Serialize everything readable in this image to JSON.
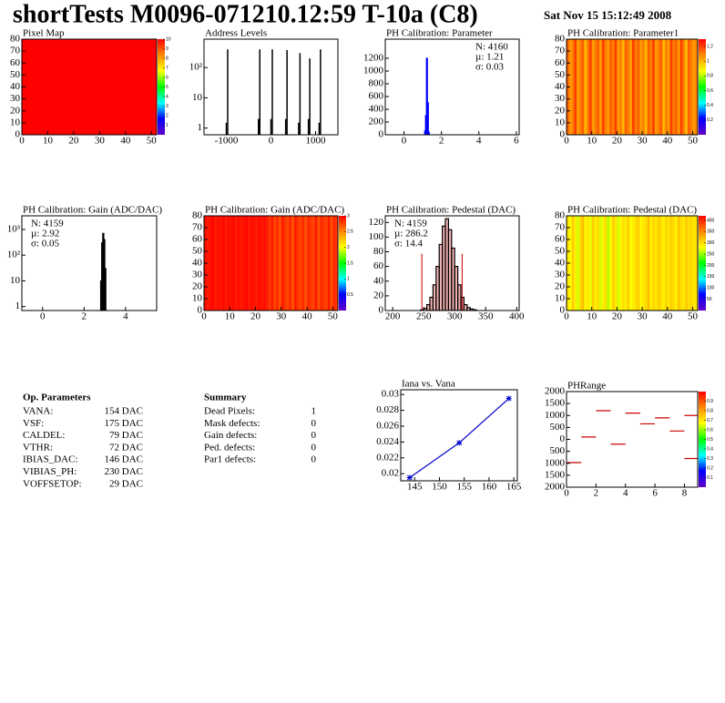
{
  "title": "shortTests M0096-071210.12:59 T-10a (C8)",
  "date": "Sat Nov 15 15:12:49 2008",
  "chart_data": [
    {
      "type": "heatmap",
      "title": "Pixel Map",
      "xlim": [
        0,
        52
      ],
      "ylim": [
        0,
        80
      ],
      "xticks": [
        0,
        10,
        20,
        30,
        40,
        50
      ],
      "yticks": [
        0,
        10,
        20,
        30,
        40,
        50,
        60,
        70,
        80
      ],
      "zlim": [
        0,
        10
      ],
      "zticks": [
        1,
        2,
        3,
        4,
        5,
        6,
        7,
        8,
        9,
        10
      ],
      "columns": [
        10,
        10,
        10,
        10,
        10,
        10,
        10,
        10,
        10,
        10,
        10,
        10,
        10,
        10,
        10,
        10,
        10,
        10,
        10,
        10,
        10,
        10,
        10,
        10,
        10,
        10,
        10,
        10,
        10,
        10,
        10,
        10,
        10,
        10,
        10,
        10,
        10,
        10,
        10,
        10,
        10,
        10,
        10,
        10,
        10,
        10,
        10,
        10,
        10,
        10,
        10,
        10
      ]
    },
    {
      "type": "spikes",
      "title": "Address Levels",
      "xlim": [
        -1500,
        1500
      ],
      "ylim": [
        0.6,
        870
      ],
      "log_y": true,
      "color": "#000000",
      "xticks": [
        -1000,
        0,
        1000
      ],
      "yticks": [
        1,
        10,
        {
          "value": 100,
          "label": "10²"
        }
      ],
      "x": [
        -1000,
        -970,
        -280,
        -250,
        0,
        30,
        330,
        360,
        620,
        650,
        840,
        870,
        1080,
        1110
      ],
      "values": [
        1.5,
        400,
        2,
        400,
        2,
        400,
        2,
        380,
        1.5,
        300,
        2,
        200,
        1.5,
        400
      ]
    },
    {
      "type": "histogram",
      "title": "PH Calibration: Parameter",
      "xlim": [
        -1,
        6.15
      ],
      "ylim": [
        0,
        1500
      ],
      "color": "#0000ff",
      "xticks": [
        0,
        2,
        4,
        6
      ],
      "yticks": [
        0,
        200,
        400,
        600,
        800,
        1000,
        1200
      ],
      "bins": [
        1.1,
        1.15,
        1.2,
        1.25,
        1.3,
        1.35
      ],
      "values": [
        60,
        300,
        1200,
        500,
        40
      ],
      "stats": [
        {
          "text": "N: 4160",
          "color": "#0000ff"
        },
        {
          "text": "µ: 1.21",
          "color": "#0000ff"
        },
        {
          "text": "σ: 0.03",
          "color": "#0000ff"
        }
      ]
    },
    {
      "type": "heatmap",
      "title": "PH Calibration: Parameter1",
      "xlim": [
        0,
        52
      ],
      "ylim": [
        0,
        80
      ],
      "xticks": [
        0,
        10,
        20,
        30,
        40,
        50
      ],
      "yticks": [
        0,
        10,
        20,
        30,
        40,
        50,
        60,
        70,
        80
      ],
      "zlim": [
        0,
        1.3
      ],
      "zticks": [
        0.2,
        0.4,
        0.6,
        0.8,
        1,
        1.2
      ],
      "columns": [
        1.15,
        1.05,
        1.1,
        1.2,
        1.05,
        1.1,
        1.15,
        1.0,
        1.1,
        1.2,
        1.05,
        1.1,
        1.15,
        1.05,
        1.2,
        1.1,
        1.05,
        1.15,
        1.1,
        1.2,
        1.05,
        1.1,
        1.0,
        1.15,
        1.1,
        1.05,
        1.2,
        1.1,
        1.15,
        1.05,
        1.1,
        1.0,
        1.15,
        1.1,
        1.2,
        1.05,
        1.1,
        1.15,
        1.0,
        1.1,
        1.05,
        1.2,
        1.1,
        1.15,
        1.05,
        1.2,
        1.1,
        1.0,
        1.15,
        1.1,
        1.05,
        1.1
      ]
    },
    {
      "type": "histogram",
      "title": "PH Calibration: Gain (ADC/DAC)",
      "xlim": [
        -1,
        5.5
      ],
      "ylim": [
        0.7,
        3400
      ],
      "log_y": true,
      "color": "#000000",
      "xticks": [
        0,
        2,
        4
      ],
      "yticks": [
        1,
        10,
        {
          "value": 100,
          "label": "10²"
        },
        {
          "value": 1000,
          "label": "10³"
        }
      ],
      "bins": [
        2.8,
        2.85,
        2.9,
        2.95,
        3.0,
        3.05
      ],
      "values": [
        10,
        300,
        700,
        400,
        30
      ],
      "stats": [
        {
          "text": "N: 4159",
          "color": "#000000"
        },
        {
          "text": "µ: 2.92",
          "color": "#000000"
        },
        {
          "text": "σ: 0.05",
          "color": "#000000"
        }
      ]
    },
    {
      "type": "heatmap",
      "title": "PH Calibration: Gain (ADC/DAC)",
      "xlim": [
        0,
        52
      ],
      "ylim": [
        0,
        80
      ],
      "xticks": [
        0,
        10,
        20,
        30,
        40,
        50
      ],
      "yticks": [
        0,
        10,
        20,
        30,
        40,
        50,
        60,
        70,
        80
      ],
      "zlim": [
        0,
        3
      ],
      "zticks": [
        0.5,
        1,
        1.5,
        2,
        2.5,
        3
      ],
      "columns": [
        2.95,
        2.9,
        2.95,
        2.98,
        2.9,
        2.95,
        2.92,
        2.97,
        2.9,
        2.95,
        2.93,
        2.96,
        2.9,
        2.95,
        2.9,
        2.94,
        2.97,
        2.9,
        2.95,
        2.93,
        2.9,
        2.96,
        2.92,
        2.95,
        2.9,
        2.8,
        2.9,
        2.75,
        2.85,
        2.7,
        2.9,
        2.8,
        2.75,
        2.85,
        2.7,
        2.9,
        2.8,
        2.75,
        2.85,
        2.7,
        2.85,
        2.8,
        2.75,
        2.9,
        2.7,
        2.85,
        2.8,
        2.75,
        2.9,
        2.7,
        2.85,
        2.8
      ]
    },
    {
      "type": "histogram",
      "title": "PH Calibration: Pedestal (DAC)",
      "xlim": [
        188,
        404
      ],
      "ylim": [
        0,
        129
      ],
      "color": "#000000",
      "fill": "#cc0000",
      "xticks": [
        200,
        250,
        300,
        350,
        400
      ],
      "yticks": [
        0,
        20,
        40,
        60,
        80,
        100,
        120
      ],
      "bins": [
        245,
        250,
        255,
        260,
        265,
        270,
        275,
        280,
        285,
        290,
        295,
        300,
        305,
        310,
        315,
        320,
        325,
        330,
        335
      ],
      "values": [
        1,
        3,
        8,
        18,
        35,
        60,
        90,
        115,
        125,
        110,
        85,
        60,
        35,
        18,
        8,
        4,
        2,
        1
      ],
      "cuts": [
        247,
        312
      ],
      "cut_color": "#cc0000",
      "stats": [
        {
          "text": "N: 4159",
          "color": "#000000"
        },
        {
          "text": "µ: 286.2",
          "color": "#cc0000"
        },
        {
          "text": "σ: 14.4",
          "color": "#cc0000"
        }
      ]
    },
    {
      "type": "heatmap",
      "title": "PH Calibration: Pedestal (DAC)",
      "xlim": [
        0,
        52
      ],
      "ylim": [
        0,
        80
      ],
      "xticks": [
        0,
        10,
        20,
        30,
        40,
        50
      ],
      "yticks": [
        0,
        10,
        20,
        30,
        40,
        50,
        60,
        70,
        80
      ],
      "zlim": [
        0,
        420
      ],
      "zticks": [
        50,
        100,
        150,
        200,
        250,
        300,
        350,
        400
      ],
      "columns": [
        300,
        280,
        310,
        290,
        270,
        300,
        320,
        285,
        295,
        275,
        310,
        290,
        300,
        270,
        290,
        300,
        260,
        280,
        310,
        295,
        270,
        285,
        300,
        290,
        310,
        280,
        290,
        300,
        310,
        285,
        295,
        300,
        320,
        290,
        305,
        295,
        310,
        300,
        290,
        305,
        295,
        310,
        300,
        290,
        315,
        300,
        295,
        310,
        300,
        305,
        295,
        300
      ]
    },
    {
      "type": "line",
      "title": "Iana vs. Vana",
      "xlim": [
        142.2,
        165.7
      ],
      "ylim": [
        0.0191,
        0.0306
      ],
      "color": "#0000cc",
      "xticks": [
        145,
        150,
        155,
        160,
        165
      ],
      "yticks": [
        0.02,
        0.022,
        0.024,
        0.026,
        0.028,
        0.03
      ],
      "x": [
        144,
        154,
        164
      ],
      "values": [
        0.0195,
        0.0239,
        0.0295
      ]
    },
    {
      "type": "segments",
      "title": "PHRange",
      "xlim": [
        0,
        8.9
      ],
      "ylim": [
        -2000,
        2000
      ],
      "color": "#cc0000",
      "xticks": [
        0,
        2,
        4,
        6,
        8
      ],
      "yticks": [
        {
          "value": -2000,
          "label": "2000"
        },
        {
          "value": -1500,
          "label": "1500"
        },
        {
          "value": -1000,
          "label": "1000"
        },
        {
          "value": -500,
          "label": "500"
        },
        0,
        500,
        1000,
        1500,
        2000
      ],
      "zlim": [
        0,
        1
      ],
      "zticks": [
        0.1,
        0.2,
        0.3,
        0.4,
        0.5,
        0.6,
        0.7,
        0.8,
        0.9
      ],
      "x": [
        0,
        1,
        2,
        3,
        4,
        5,
        6,
        7,
        8,
        8
      ],
      "values": [
        -970,
        100,
        1200,
        -200,
        1100,
        650,
        900,
        350,
        1000,
        -800
      ]
    }
  ],
  "op_parameters": {
    "title": "Op. Parameters",
    "rows": [
      [
        "VANA:",
        "154 DAC"
      ],
      [
        "VSF:",
        "175 DAC"
      ],
      [
        "CALDEL:",
        "79 DAC"
      ],
      [
        "VTHR:",
        "72 DAC"
      ],
      [
        "IBIAS_DAC:",
        "146 DAC"
      ],
      [
        "VIBIAS_PH:",
        "230 DAC"
      ],
      [
        "VOFFSETOP:",
        "29 DAC"
      ]
    ]
  },
  "summary": {
    "title": "Summary",
    "rows": [
      {
        "name": "Dead Pixels:",
        "value": 1,
        "color": "#000000"
      },
      {
        "name": "Mask defects:",
        "value": 0,
        "color": "#000000"
      },
      {
        "name": "Gain defects:",
        "value": 0,
        "color": "#000000"
      },
      {
        "name": "Ped. defects:",
        "value": 0,
        "color": "#ff0000"
      },
      {
        "name": "Par1 defects:",
        "value": 0,
        "color": "#0000ff"
      }
    ]
  }
}
